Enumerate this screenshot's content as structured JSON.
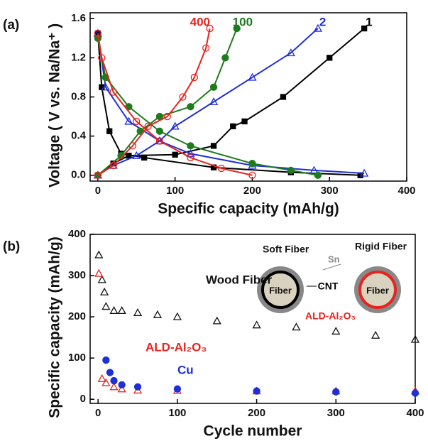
{
  "chart_data": [
    {
      "type": "line",
      "panel": "(a)",
      "x_label": "Specific capacity (mAh/g)",
      "y_label": "Voltage ( V vs. Na/Na⁺ )",
      "xlim": [
        -10,
        400
      ],
      "ylim": [
        -0.06,
        1.66
      ],
      "xticks": [
        0,
        100,
        200,
        300,
        400
      ],
      "yticks": [
        {
          "value": 0,
          "label": "0.0"
        },
        0.4,
        0.8,
        1.2,
        1.6
      ],
      "series": [
        {
          "name": "1",
          "color": "#000000",
          "marker": "square",
          "filled": true,
          "x": [
            0,
            5,
            15,
            30,
            60,
            150,
            250,
            340,
            null,
            0,
            20,
            40,
            100,
            150,
            175,
            190,
            240,
            300,
            345
          ],
          "values": [
            1.45,
            0.9,
            0.45,
            0.22,
            0.18,
            0.08,
            0.03,
            0.0,
            null,
            0.0,
            0.12,
            0.2,
            0.21,
            0.3,
            0.5,
            0.55,
            0.8,
            1.2,
            1.5
          ]
        },
        {
          "name": "2",
          "color": "#1f2fd6",
          "marker": "triangle",
          "filled": false,
          "x": [
            0,
            10,
            40,
            80,
            120,
            200,
            280,
            345,
            null,
            0,
            20,
            50,
            80,
            100,
            150,
            200,
            250,
            285
          ],
          "values": [
            1.45,
            0.9,
            0.55,
            0.35,
            0.22,
            0.1,
            0.05,
            0.02,
            null,
            0.0,
            0.1,
            0.2,
            0.35,
            0.5,
            0.75,
            1.0,
            1.25,
            1.5
          ]
        },
        {
          "name": "100",
          "color": "#1e7b1e",
          "marker": "circle",
          "filled": true,
          "x": [
            0,
            10,
            40,
            80,
            120,
            200,
            250,
            285,
            null,
            0,
            30,
            55,
            80,
            120,
            150,
            165,
            180
          ],
          "values": [
            1.4,
            1.0,
            0.7,
            0.45,
            0.3,
            0.12,
            0.05,
            0.0,
            null,
            0.0,
            0.2,
            0.45,
            0.6,
            0.7,
            0.9,
            1.2,
            1.5
          ]
        },
        {
          "name": "400",
          "color": "#e8231f",
          "marker": "circle",
          "filled": false,
          "x": [
            0,
            5,
            20,
            50,
            80,
            120,
            160,
            200,
            null,
            0,
            20,
            45,
            65,
            90,
            110,
            125,
            140,
            145
          ],
          "values": [
            1.45,
            1.2,
            0.85,
            0.55,
            0.35,
            0.18,
            0.07,
            0.0,
            null,
            0.0,
            0.1,
            0.3,
            0.5,
            0.6,
            0.8,
            1.0,
            1.3,
            1.5
          ]
        }
      ]
    },
    {
      "type": "scatter",
      "panel": "(b)",
      "x_label": "Cycle number",
      "y_label": "Specific capacity (mAh/g)",
      "xlim": [
        -10,
        400
      ],
      "ylim": [
        -10,
        400
      ],
      "xticks": [
        0,
        100,
        200,
        300,
        400
      ],
      "yticks": [
        0,
        100,
        200,
        300,
        400
      ],
      "series": [
        {
          "name": "Wood Fiber",
          "color": "#111111",
          "marker": "triangle",
          "filled": false,
          "x": [
            1,
            5,
            8,
            10,
            20,
            30,
            50,
            75,
            100,
            150,
            200,
            250,
            300,
            350,
            400
          ],
          "values": [
            350,
            290,
            260,
            225,
            215,
            215,
            210,
            205,
            200,
            190,
            180,
            175,
            165,
            155,
            145
          ]
        },
        {
          "name": "ALD-Al₂O₃",
          "color": "#e8231f",
          "marker": "triangle",
          "filled": false,
          "x": [
            1,
            5,
            10,
            20,
            30,
            50,
            100,
            200,
            300,
            400
          ],
          "values": [
            305,
            50,
            40,
            30,
            25,
            22,
            21,
            20,
            20,
            20
          ]
        },
        {
          "name": "Cu",
          "color": "#1f2fd6",
          "marker": "circle",
          "filled": true,
          "x": [
            10,
            15,
            20,
            30,
            50,
            100,
            200,
            300,
            400
          ],
          "values": [
            95,
            65,
            45,
            35,
            30,
            25,
            20,
            18,
            15
          ]
        }
      ],
      "inset": {
        "soft": "Soft Fiber",
        "rigid": "Rigid Fiber",
        "sn": "Sn",
        "fiber_left": "Fiber",
        "cnt": "CNT",
        "fiber_right": "Fiber",
        "coating": "ALD-Al₂O₃"
      }
    }
  ]
}
